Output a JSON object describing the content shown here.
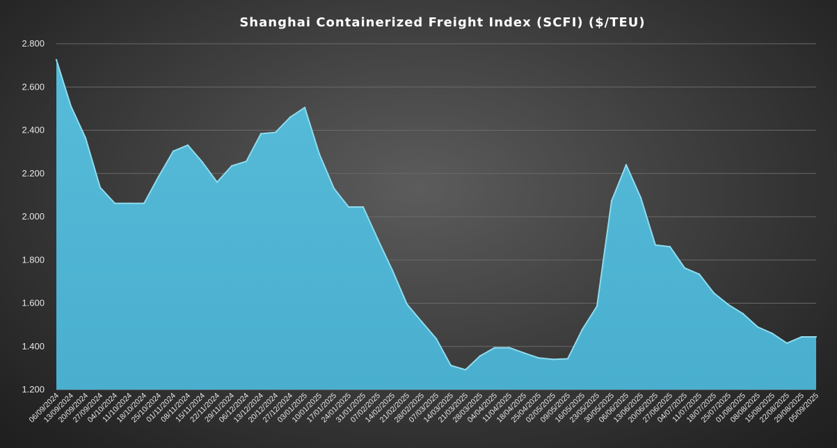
{
  "chart_data": {
    "type": "area",
    "title": "Shanghai Containerized Freight Index  (SCFI) ($/TEU)",
    "xlabel": "",
    "ylabel": "",
    "ylim": [
      1200,
      2800
    ],
    "yticks": [
      1200,
      1400,
      1600,
      1800,
      2000,
      2200,
      2400,
      2600,
      2800
    ],
    "ytick_labels": [
      "1.200",
      "1.400",
      "1.600",
      "1.800",
      "2.000",
      "2.200",
      "2.400",
      "2.600",
      "2.800"
    ],
    "grid": true,
    "legend": "none",
    "colors": {
      "fill": "#4fb6d4",
      "edge": "#8fdcef",
      "grid": "#6a6a6a",
      "text": "#e6e6e6"
    },
    "x": [
      "06/09/2024",
      "13/09/2024",
      "20/09/2024",
      "27/09/2024",
      "04/10/2024",
      "11/10/2024",
      "18/10/2024",
      "25/10/2024",
      "01/11/2024",
      "08/11/2024",
      "15/11/2024",
      "22/11/2024",
      "29/11/2024",
      "06/12/2024",
      "13/12/2024",
      "20/12/2024",
      "27/12/2024",
      "03/01/2025",
      "10/01/2025",
      "17/01/2025",
      "24/01/2025",
      "31/01/2025",
      "07/02/2025",
      "14/02/2025",
      "21/02/2025",
      "28/02/2025",
      "07/03/2025",
      "14/03/2025",
      "21/03/2025",
      "28/03/2025",
      "04/04/2025",
      "11/04/2025",
      "18/04/2025",
      "25/04/2025",
      "02/05/2025",
      "09/05/2025",
      "16/05/2025",
      "23/05/2025",
      "30/05/2025",
      "06/06/2025",
      "13/06/2025",
      "20/06/2025",
      "27/06/2025",
      "04/07/2025",
      "11/07/2025",
      "18/07/2025",
      "25/07/2025",
      "01/08/2025",
      "08/08/2025",
      "15/08/2025",
      "22/08/2025",
      "29/08/2025",
      "05/09/2025"
    ],
    "series": [
      {
        "values": [
          2726,
          2511,
          2364,
          2135,
          2062,
          2062,
          2062,
          2186,
          2303,
          2331,
          2252,
          2160,
          2235,
          2256,
          2384,
          2390,
          2460,
          2505,
          2290,
          2131,
          2045,
          2045,
          1896,
          1752,
          1595,
          1515,
          1436,
          1312,
          1292,
          1356,
          1394,
          1394,
          1370,
          1347,
          1340,
          1343,
          1479,
          1586,
          2073,
          2240,
          2088,
          1869,
          1861,
          1763,
          1734,
          1647,
          1593,
          1551,
          1490,
          1460,
          1415,
          1444,
          1444
        ]
      }
    ]
  }
}
